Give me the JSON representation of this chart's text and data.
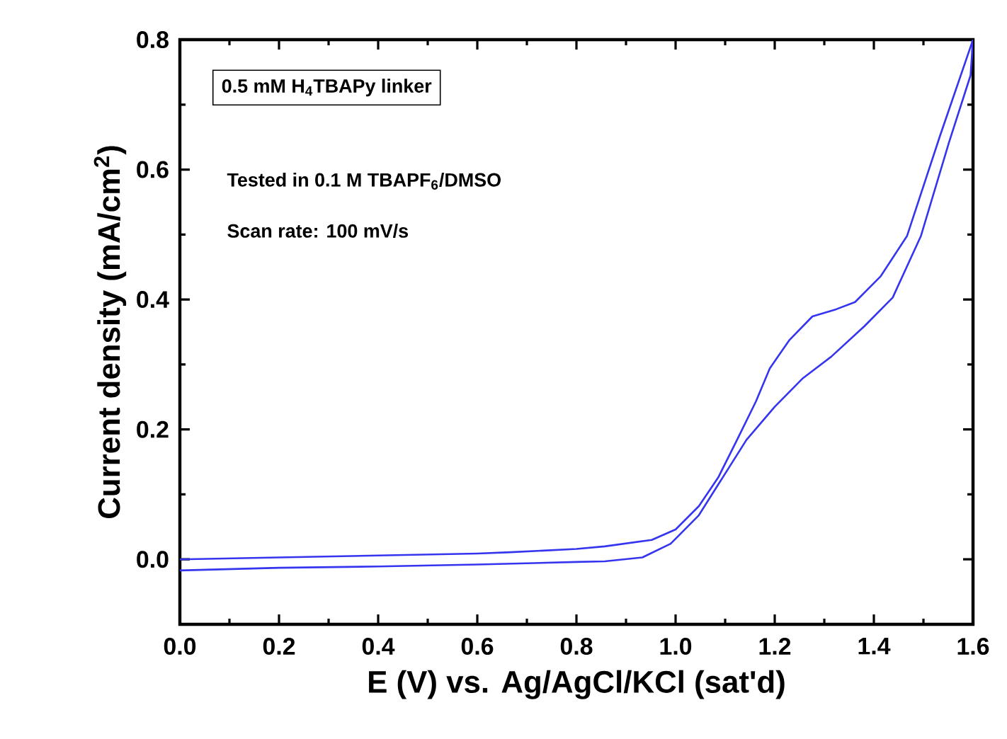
{
  "chart_data": {
    "type": "line",
    "xlabel": "E (V) vs. Ag/AgCl/KCl (sat'd)",
    "ylabel": "Current density (mA/cm$^{2}$)",
    "annotations": [
      "0.5 mM H$_{4}$TBAPy linker",
      "Tested in 0.1 M TBAPF$_{6}$/DMSO",
      "Scan rate: 100 mV/s"
    ],
    "xlim": [
      0,
      1.6
    ],
    "ylim": [
      -0.1,
      0.8
    ],
    "xticks": [
      {
        "value": 0,
        "label": "0.0"
      },
      {
        "value": 0.2,
        "label": "0.2"
      },
      {
        "value": 0.4,
        "label": "0.4"
      },
      {
        "value": 0.6,
        "label": "0.6"
      },
      {
        "value": 0.8,
        "label": "0.8"
      },
      {
        "value": 1.0,
        "label": "1.0"
      },
      {
        "value": 1.2,
        "label": "1.2"
      },
      {
        "value": 1.4,
        "label": "1.4"
      },
      {
        "value": 1.6,
        "label": "1.6"
      }
    ],
    "yticks": [
      {
        "value": 0,
        "label": "0.0"
      },
      {
        "value": 0.2,
        "label": "0.2"
      },
      {
        "value": 0.4,
        "label": "0.4"
      },
      {
        "value": 0.6,
        "label": "0.6"
      },
      {
        "value": 0.8,
        "label": "0.8"
      }
    ],
    "series": [
      {
        "color": "#3535f0",
        "x": [
          0,
          0.2,
          0.4,
          0.6,
          0.667,
          0.8,
          0.857,
          0.952,
          1.0,
          1.047,
          1.086,
          1.124,
          1.162,
          1.19,
          1.229,
          1.276,
          1.324,
          1.362,
          1.414,
          1.467,
          1.533,
          1.6
        ],
        "values": [
          0.0,
          0.003,
          0.006,
          0.009,
          0.011,
          0.016,
          0.02,
          0.03,
          0.046,
          0.082,
          0.126,
          0.184,
          0.243,
          0.294,
          0.337,
          0.374,
          0.385,
          0.396,
          0.436,
          0.498,
          0.651,
          0.8
        ]
      },
      {
        "color": "#3535f0",
        "x": [
          0,
          0.2,
          0.4,
          0.6,
          0.8,
          0.857,
          0.933,
          0.99,
          1.047,
          1.095,
          1.143,
          1.2,
          1.257,
          1.314,
          1.381,
          1.438,
          1.495,
          1.552,
          1.595,
          1.6
        ],
        "values": [
          -0.017,
          -0.013,
          -0.011,
          -0.008,
          -0.004,
          -0.003,
          0.003,
          0.024,
          0.068,
          0.126,
          0.184,
          0.235,
          0.279,
          0.312,
          0.359,
          0.403,
          0.498,
          0.643,
          0.745,
          0.8
        ]
      }
    ]
  }
}
